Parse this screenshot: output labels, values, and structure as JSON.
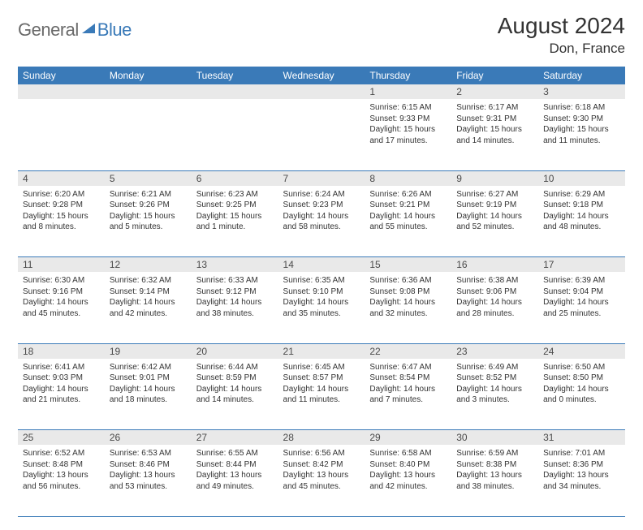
{
  "brand": {
    "word1": "General",
    "word2": "Blue"
  },
  "title": "August 2024",
  "location": "Don, France",
  "colors": {
    "header_bg": "#3a7ab8",
    "header_text": "#ffffff",
    "daynum_bg": "#e9e9e9",
    "cell_border": "#3a7ab8",
    "body_text": "#333333",
    "logo_gray": "#6a6a6a",
    "logo_blue": "#3a7ab8"
  },
  "weekdays": [
    "Sunday",
    "Monday",
    "Tuesday",
    "Wednesday",
    "Thursday",
    "Friday",
    "Saturday"
  ],
  "weeks": [
    [
      null,
      null,
      null,
      null,
      {
        "n": "1",
        "sr": "6:15 AM",
        "ss": "9:33 PM",
        "dl": "15 hours and 17 minutes."
      },
      {
        "n": "2",
        "sr": "6:17 AM",
        "ss": "9:31 PM",
        "dl": "15 hours and 14 minutes."
      },
      {
        "n": "3",
        "sr": "6:18 AM",
        "ss": "9:30 PM",
        "dl": "15 hours and 11 minutes."
      }
    ],
    [
      {
        "n": "4",
        "sr": "6:20 AM",
        "ss": "9:28 PM",
        "dl": "15 hours and 8 minutes."
      },
      {
        "n": "5",
        "sr": "6:21 AM",
        "ss": "9:26 PM",
        "dl": "15 hours and 5 minutes."
      },
      {
        "n": "6",
        "sr": "6:23 AM",
        "ss": "9:25 PM",
        "dl": "15 hours and 1 minute."
      },
      {
        "n": "7",
        "sr": "6:24 AM",
        "ss": "9:23 PM",
        "dl": "14 hours and 58 minutes."
      },
      {
        "n": "8",
        "sr": "6:26 AM",
        "ss": "9:21 PM",
        "dl": "14 hours and 55 minutes."
      },
      {
        "n": "9",
        "sr": "6:27 AM",
        "ss": "9:19 PM",
        "dl": "14 hours and 52 minutes."
      },
      {
        "n": "10",
        "sr": "6:29 AM",
        "ss": "9:18 PM",
        "dl": "14 hours and 48 minutes."
      }
    ],
    [
      {
        "n": "11",
        "sr": "6:30 AM",
        "ss": "9:16 PM",
        "dl": "14 hours and 45 minutes."
      },
      {
        "n": "12",
        "sr": "6:32 AM",
        "ss": "9:14 PM",
        "dl": "14 hours and 42 minutes."
      },
      {
        "n": "13",
        "sr": "6:33 AM",
        "ss": "9:12 PM",
        "dl": "14 hours and 38 minutes."
      },
      {
        "n": "14",
        "sr": "6:35 AM",
        "ss": "9:10 PM",
        "dl": "14 hours and 35 minutes."
      },
      {
        "n": "15",
        "sr": "6:36 AM",
        "ss": "9:08 PM",
        "dl": "14 hours and 32 minutes."
      },
      {
        "n": "16",
        "sr": "6:38 AM",
        "ss": "9:06 PM",
        "dl": "14 hours and 28 minutes."
      },
      {
        "n": "17",
        "sr": "6:39 AM",
        "ss": "9:04 PM",
        "dl": "14 hours and 25 minutes."
      }
    ],
    [
      {
        "n": "18",
        "sr": "6:41 AM",
        "ss": "9:03 PM",
        "dl": "14 hours and 21 minutes."
      },
      {
        "n": "19",
        "sr": "6:42 AM",
        "ss": "9:01 PM",
        "dl": "14 hours and 18 minutes."
      },
      {
        "n": "20",
        "sr": "6:44 AM",
        "ss": "8:59 PM",
        "dl": "14 hours and 14 minutes."
      },
      {
        "n": "21",
        "sr": "6:45 AM",
        "ss": "8:57 PM",
        "dl": "14 hours and 11 minutes."
      },
      {
        "n": "22",
        "sr": "6:47 AM",
        "ss": "8:54 PM",
        "dl": "14 hours and 7 minutes."
      },
      {
        "n": "23",
        "sr": "6:49 AM",
        "ss": "8:52 PM",
        "dl": "14 hours and 3 minutes."
      },
      {
        "n": "24",
        "sr": "6:50 AM",
        "ss": "8:50 PM",
        "dl": "14 hours and 0 minutes."
      }
    ],
    [
      {
        "n": "25",
        "sr": "6:52 AM",
        "ss": "8:48 PM",
        "dl": "13 hours and 56 minutes."
      },
      {
        "n": "26",
        "sr": "6:53 AM",
        "ss": "8:46 PM",
        "dl": "13 hours and 53 minutes."
      },
      {
        "n": "27",
        "sr": "6:55 AM",
        "ss": "8:44 PM",
        "dl": "13 hours and 49 minutes."
      },
      {
        "n": "28",
        "sr": "6:56 AM",
        "ss": "8:42 PM",
        "dl": "13 hours and 45 minutes."
      },
      {
        "n": "29",
        "sr": "6:58 AM",
        "ss": "8:40 PM",
        "dl": "13 hours and 42 minutes."
      },
      {
        "n": "30",
        "sr": "6:59 AM",
        "ss": "8:38 PM",
        "dl": "13 hours and 38 minutes."
      },
      {
        "n": "31",
        "sr": "7:01 AM",
        "ss": "8:36 PM",
        "dl": "13 hours and 34 minutes."
      }
    ]
  ],
  "labels": {
    "sunrise": "Sunrise:",
    "sunset": "Sunset:",
    "daylight": "Daylight:"
  }
}
